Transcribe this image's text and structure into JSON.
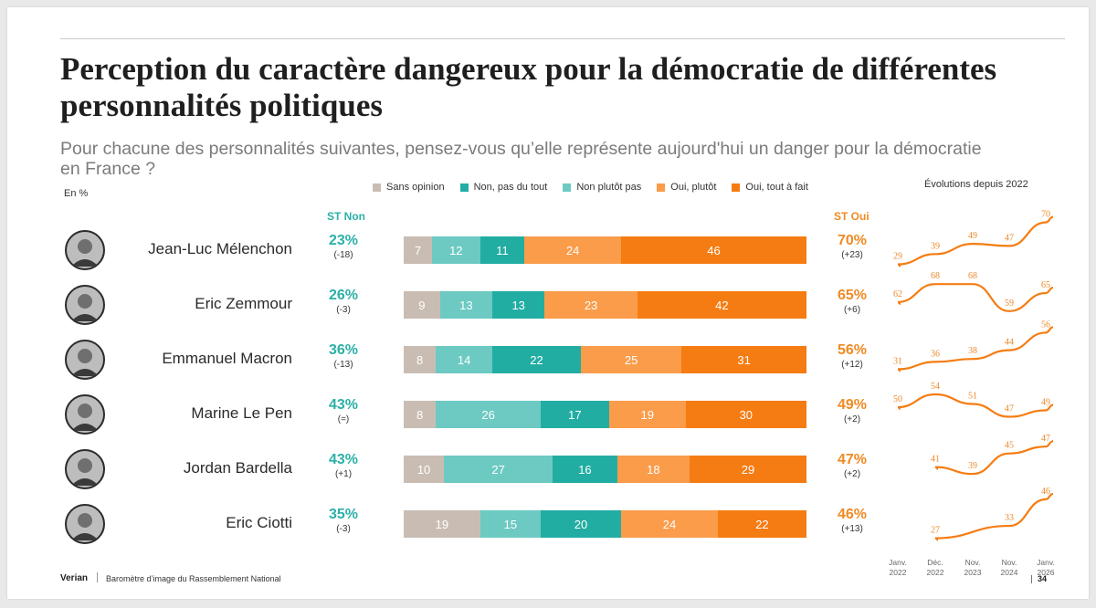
{
  "title": "Perception du caractère dangereux pour la démocratie de différentes personnalités politiques",
  "subtitle": "Pour chacune des personnalités suivantes, pensez-vous qu’elle représente aujourd'hui un danger pour la démocratie en France ?",
  "unit": "En %",
  "headers": {
    "st_non": "ST Non",
    "st_oui": "ST Oui",
    "evolutions": "Évolutions depuis 2022"
  },
  "colors": {
    "sans_opinion": "#c9bdb3",
    "non_pas_du_tout": "#22ada3",
    "non_plutot_pas": "#6ccac2",
    "oui_plutot": "#fa9c4a",
    "oui_tout_a_fait": "#f57c12"
  },
  "chart_data": [
    {
      "type": "bar",
      "stacked": true,
      "orientation": "horizontal",
      "categories": [
        "Jean-Luc Mélenchon",
        "Eric Zemmour",
        "Emmanuel Macron",
        "Marine Le Pen",
        "Jordan Bardella",
        "Eric Ciotti"
      ],
      "series": [
        {
          "name": "Sans opinion",
          "values": [
            7,
            9,
            8,
            8,
            10,
            19
          ]
        },
        {
          "name": "Non, pas du tout",
          "values": [
            11,
            13,
            22,
            17,
            16,
            20
          ]
        },
        {
          "name": "Non plutôt pas",
          "values": [
            12,
            13,
            14,
            26,
            27,
            15
          ]
        },
        {
          "name": "Oui, plutôt",
          "values": [
            24,
            23,
            25,
            19,
            18,
            24
          ]
        },
        {
          "name": "Oui, tout à fait",
          "values": [
            46,
            42,
            31,
            30,
            29,
            22
          ]
        }
      ],
      "bar_order": [
        "Sans opinion",
        "Non plutôt pas",
        "Non, pas du tout",
        "Oui, plutôt",
        "Oui, tout à fait"
      ],
      "legend": [
        "Sans opinion",
        "Non, pas du tout",
        "Non plutôt pas",
        "Oui, plutôt",
        "Oui, tout à fait"
      ],
      "st_non": [
        "23%",
        "26%",
        "36%",
        "43%",
        "43%",
        "35%"
      ],
      "st_non_change": [
        "(-18)",
        "(-3)",
        "(-13)",
        "(=)",
        "(+1)",
        "(-3)"
      ],
      "st_oui": [
        "70%",
        "65%",
        "56%",
        "49%",
        "47%",
        "46%"
      ],
      "st_oui_change": [
        "(+23)",
        "(+6)",
        "(+12)",
        "(+2)",
        "(+2)",
        "(+13)"
      ]
    },
    {
      "type": "line",
      "title": "Évolutions depuis 2022",
      "x": [
        "Janv. 2022",
        "Déc. 2022",
        "Nov. 2023",
        "Nov. 2024",
        "Janv. 2026"
      ],
      "series": [
        {
          "name": "Jean-Luc Mélenchon",
          "values": [
            29,
            39,
            49,
            47,
            70
          ]
        },
        {
          "name": "Eric Zemmour",
          "values": [
            62,
            68,
            68,
            59,
            65
          ]
        },
        {
          "name": "Emmanuel Macron",
          "values": [
            31,
            36,
            38,
            44,
            56
          ]
        },
        {
          "name": "Marine Le Pen",
          "values": [
            50,
            54,
            51,
            47,
            49
          ]
        },
        {
          "name": "Jordan Bardella",
          "values": [
            null,
            41,
            39,
            45,
            47
          ]
        },
        {
          "name": "Eric Ciotti",
          "values": [
            null,
            27,
            null,
            33,
            46
          ]
        }
      ]
    }
  ],
  "footer": {
    "brand": "Verian",
    "text": "Baromètre d’image du Rassemblement National",
    "page": "34"
  }
}
